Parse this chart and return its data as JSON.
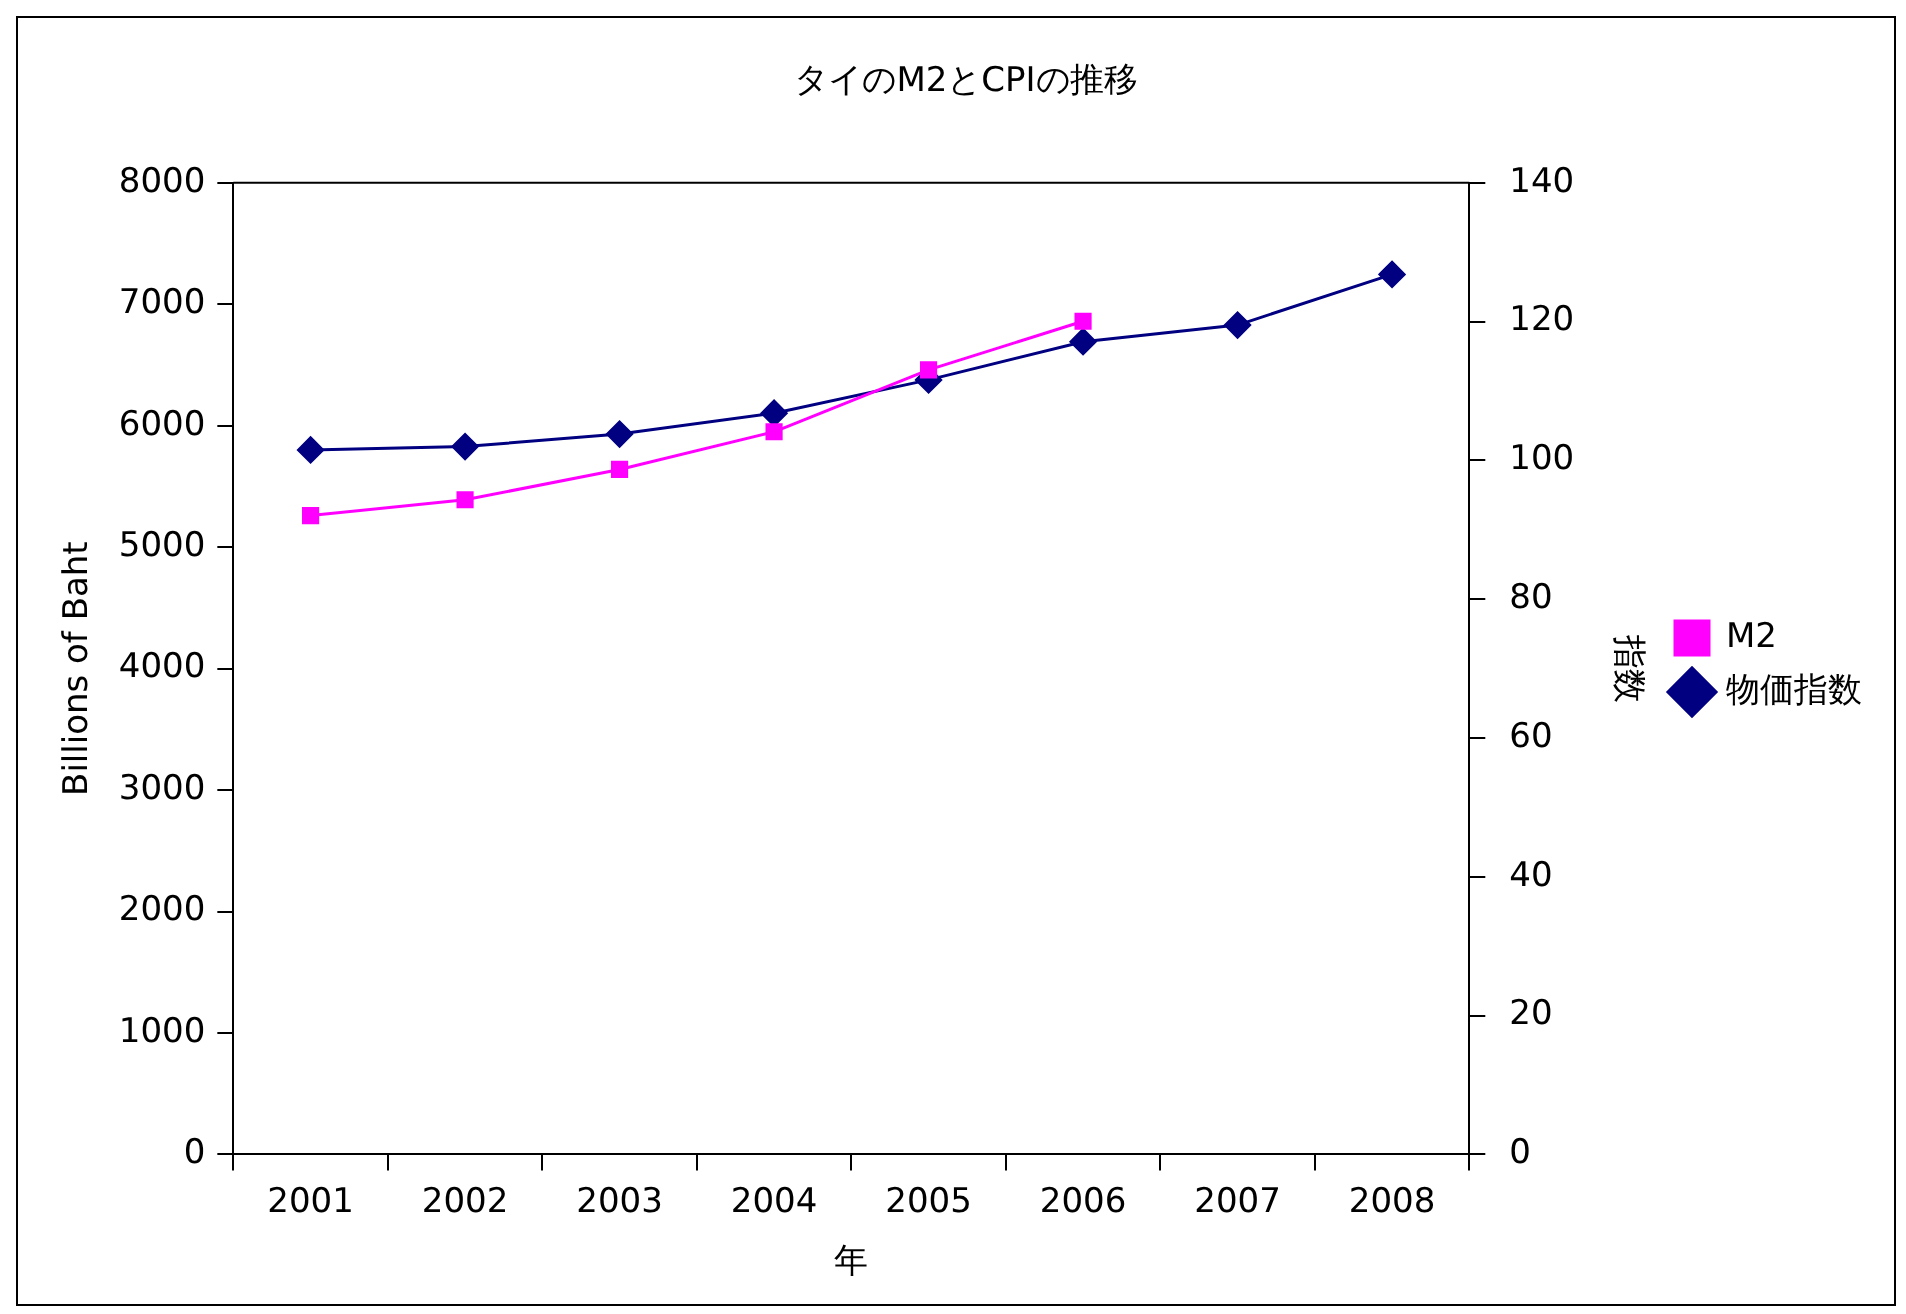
{
  "chart_data": {
    "type": "line",
    "title": "タイのM2とCPIの推移",
    "xlabel": "年",
    "ylabel": "Billions of Baht",
    "y2label": "指数",
    "categories": [
      "2001",
      "2002",
      "2003",
      "2004",
      "2005",
      "2006",
      "2007",
      "2008"
    ],
    "series": [
      {
        "name": "M2",
        "color": "#ff00ff",
        "marker": "square",
        "values": [
          5260,
          5390,
          5640,
          5950,
          6460,
          6860,
          null,
          null
        ]
      },
      {
        "name": "物価指数",
        "color": "#000080",
        "marker": "diamond",
        "axis": "y2",
        "values": [
          101.5,
          102.0,
          103.8,
          106.8,
          111.6,
          117.1,
          119.5,
          126.8
        ]
      }
    ],
    "ylim": [
      0,
      8000
    ],
    "yticks": [
      0,
      1000,
      2000,
      3000,
      4000,
      5000,
      6000,
      7000,
      8000
    ],
    "y2lim": [
      0,
      140
    ],
    "y2ticks": [
      0,
      20,
      40,
      60,
      80,
      100,
      120,
      140
    ],
    "grid": false,
    "legend": "right",
    "line_style": "solid"
  }
}
